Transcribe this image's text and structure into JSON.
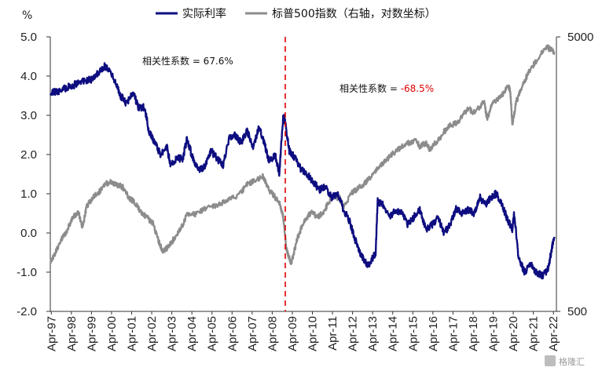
{
  "chart_data": {
    "type": "line",
    "left_axis": {
      "unit": "%",
      "ylim": [
        -2.0,
        5.0
      ],
      "ticks": [
        "-2.0",
        "-1.0",
        "0.0",
        "1.0",
        "2.0",
        "3.0",
        "4.0",
        "5.0"
      ]
    },
    "right_axis": {
      "scale": "log",
      "ylim": [
        500,
        5000
      ],
      "ticks": [
        "500",
        "5000"
      ]
    },
    "x_ticks": [
      "Apr-97",
      "Apr-98",
      "Apr-99",
      "Apr-00",
      "Apr-01",
      "Apr-02",
      "Apr-03",
      "Apr-04",
      "Apr-05",
      "Apr-06",
      "Apr-07",
      "Apr-08",
      "Apr-09",
      "Apr-10",
      "Apr-11",
      "Apr-12",
      "Apr-13",
      "Apr-14",
      "Apr-15",
      "Apr-16",
      "Apr-17",
      "Apr-18",
      "Apr-19",
      "Apr-20",
      "Apr-21",
      "Apr-22"
    ],
    "xlim": [
      1997.2,
      2022.4
    ],
    "legend": {
      "position": "top"
    },
    "series": [
      {
        "name": "实际利率",
        "axis": "left",
        "color": "#0d0d80",
        "x": [
          1997.2,
          1997.6,
          1998.0,
          1998.5,
          1999.0,
          1999.3,
          1999.6,
          1999.9,
          2000.1,
          2000.4,
          2000.7,
          2001.0,
          2001.3,
          2001.6,
          2001.9,
          2002.1,
          2002.4,
          2002.7,
          2003.0,
          2003.2,
          2003.5,
          2003.8,
          2004.0,
          2004.3,
          2004.6,
          2004.9,
          2005.2,
          2005.5,
          2005.8,
          2006.1,
          2006.4,
          2006.7,
          2007.0,
          2007.3,
          2007.6,
          2007.9,
          2008.1,
          2008.4,
          2008.6,
          2008.8,
          2008.9,
          2009.1,
          2009.4,
          2009.7,
          2010.0,
          2010.3,
          2010.6,
          2010.9,
          2011.2,
          2011.5,
          2011.8,
          2012.1,
          2012.4,
          2012.7,
          2013.0,
          2013.2,
          2013.4,
          2013.5,
          2013.8,
          2014.1,
          2014.4,
          2014.7,
          2015.0,
          2015.3,
          2015.6,
          2015.9,
          2016.2,
          2016.5,
          2016.8,
          2017.1,
          2017.4,
          2017.7,
          2018.0,
          2018.3,
          2018.6,
          2018.9,
          2019.1,
          2019.4,
          2019.7,
          2020.0,
          2020.2,
          2020.3,
          2020.5,
          2020.8,
          2021.1,
          2021.4,
          2021.7,
          2022.0,
          2022.2,
          2022.3
        ],
        "y": [
          3.6,
          3.6,
          3.7,
          3.8,
          3.9,
          3.9,
          4.1,
          4.25,
          4.15,
          3.9,
          3.5,
          3.3,
          3.6,
          3.2,
          3.2,
          2.6,
          2.3,
          2.0,
          2.2,
          1.7,
          1.9,
          1.9,
          2.4,
          1.9,
          1.6,
          1.7,
          2.1,
          1.9,
          1.7,
          2.4,
          2.5,
          2.3,
          2.6,
          2.2,
          2.7,
          2.2,
          1.8,
          2.0,
          1.5,
          3.0,
          2.8,
          2.1,
          1.9,
          1.6,
          1.5,
          1.3,
          1.1,
          1.2,
          0.9,
          1.0,
          0.6,
          0.3,
          -0.2,
          -0.6,
          -0.85,
          -0.7,
          -0.5,
          0.8,
          0.7,
          0.4,
          0.6,
          0.5,
          0.2,
          0.4,
          0.6,
          0.1,
          0.2,
          0.4,
          0.0,
          0.2,
          0.6,
          0.5,
          0.6,
          0.5,
          0.9,
          0.7,
          0.9,
          1.0,
          0.7,
          0.3,
          0.1,
          0.5,
          -0.6,
          -1.0,
          -0.8,
          -1.0,
          -1.1,
          -0.9,
          -0.3,
          -0.1
        ]
      },
      {
        "name": "标普500指数（右轴，对数坐标）",
        "axis": "right",
        "color": "#8c8c8c",
        "x": [
          1997.2,
          1997.4,
          1997.7,
          1998.0,
          1998.3,
          1998.6,
          1998.8,
          1999.0,
          1999.3,
          1999.6,
          1999.9,
          2000.2,
          2000.5,
          2000.8,
          2001.1,
          2001.4,
          2001.7,
          2002.0,
          2002.3,
          2002.6,
          2002.8,
          2003.1,
          2003.4,
          2003.7,
          2004.0,
          2004.5,
          2005.0,
          2005.5,
          2006.0,
          2006.5,
          2007.0,
          2007.4,
          2007.8,
          2008.1,
          2008.4,
          2008.6,
          2008.8,
          2008.95,
          2009.1,
          2009.2,
          2009.5,
          2009.8,
          2010.2,
          2010.5,
          2010.8,
          2011.2,
          2011.6,
          2011.8,
          2012.2,
          2012.5,
          2012.8,
          2013.2,
          2013.6,
          2014.0,
          2014.5,
          2015.0,
          2015.4,
          2015.6,
          2015.9,
          2016.1,
          2016.5,
          2017.0,
          2017.5,
          2018.0,
          2018.3,
          2018.8,
          2018.95,
          2019.2,
          2019.6,
          2020.0,
          2020.1,
          2020.2,
          2020.4,
          2020.7,
          2021.0,
          2021.5,
          2021.9,
          2022.1,
          2022.3
        ],
        "y": [
          760,
          800,
          900,
          970,
          1100,
          1150,
          1000,
          1200,
          1300,
          1350,
          1450,
          1480,
          1450,
          1420,
          1300,
          1250,
          1150,
          1100,
          1050,
          900,
          830,
          860,
          930,
          1000,
          1120,
          1130,
          1200,
          1210,
          1280,
          1300,
          1450,
          1500,
          1550,
          1380,
          1300,
          1250,
          1100,
          850,
          780,
          750,
          920,
          1050,
          1150,
          1100,
          1150,
          1300,
          1300,
          1200,
          1350,
          1400,
          1450,
          1550,
          1700,
          1800,
          1950,
          2050,
          2100,
          2000,
          2050,
          1950,
          2100,
          2350,
          2450,
          2750,
          2650,
          2900,
          2500,
          2850,
          3000,
          3300,
          3200,
          2400,
          2900,
          3300,
          3700,
          4200,
          4600,
          4500,
          4400
        ]
      }
    ],
    "annotations": [
      {
        "text": "相关性系数 = 67.6%"
      },
      {
        "label": "相关性系数 = ",
        "value": "-68.5%",
        "value_color": "#e00000"
      }
    ],
    "vline": {
      "x": 2008.9,
      "color": "#e00000",
      "style": "dashed"
    }
  },
  "watermark": "格隆汇"
}
